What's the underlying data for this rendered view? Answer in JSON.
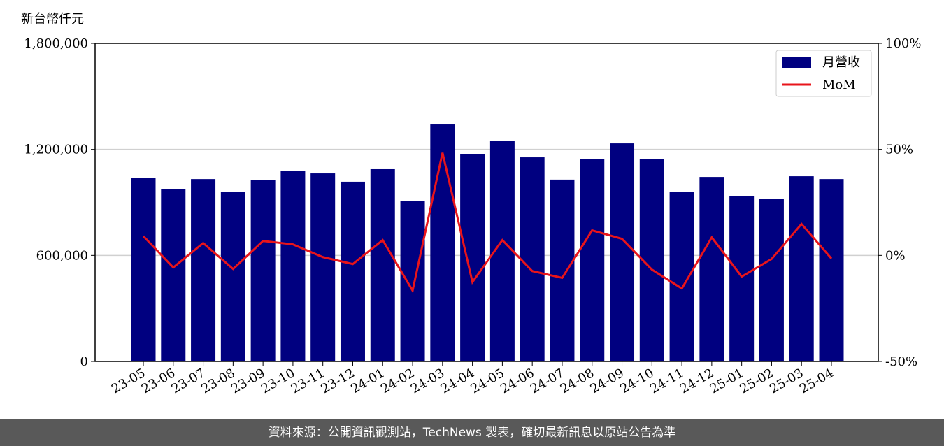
{
  "chart_data": {
    "type": "bar-line",
    "y_label": "新台幣仟元",
    "categories": [
      "23-05",
      "23-06",
      "23-07",
      "23-08",
      "23-09",
      "23-10",
      "23-11",
      "23-12",
      "24-01",
      "24-02",
      "24-03",
      "24-04",
      "24-05",
      "24-06",
      "24-07",
      "24-08",
      "24-09",
      "24-10",
      "24-11",
      "24-12",
      "25-01",
      "25-02",
      "25-03",
      "25-04"
    ],
    "series": [
      {
        "name": "月營收",
        "color": "#000080",
        "type": "bar",
        "values": [
          1040000,
          977000,
          1032000,
          961000,
          1025000,
          1080000,
          1064000,
          1017000,
          1088000,
          906000,
          1341000,
          1171000,
          1250000,
          1155000,
          1029000,
          1147000,
          1234000,
          1147000,
          961000,
          1044000,
          934000,
          918000,
          1048000,
          1032000
        ]
      },
      {
        "name": "MoM",
        "color": "#e8141b",
        "type": "line",
        "axis": "y2",
        "values": [
          9.1,
          -5.7,
          5.8,
          -6.4,
          6.8,
          5.2,
          -0.8,
          -4.1,
          7.2,
          -16.6,
          48.4,
          -12.6,
          7.2,
          -7.4,
          -10.6,
          11.8,
          7.8,
          -6.7,
          -15.6,
          8.5,
          -10,
          -1.7,
          14.8,
          -1.5
        ]
      }
    ],
    "ylim": [
      0,
      1800000
    ],
    "yticks": [
      0,
      {
        "value": 600000,
        "label": "600,000"
      },
      {
        "value": 1200000,
        "label": "1,200,000"
      },
      {
        "value": 1800000,
        "label": "1,800,000"
      }
    ],
    "y2lim": [
      -50,
      100
    ],
    "y2ticks": [
      {
        "value": -50,
        "label": "-50%"
      },
      {
        "value": 0,
        "label": "0%"
      },
      {
        "value": 50,
        "label": "50%"
      },
      {
        "value": 100,
        "label": "100%"
      }
    ],
    "grid": true,
    "legend": "upper right",
    "footer": "資料來源：公開資訊觀測站，TechNews 製表，確切最新訊息以原站公告為準"
  }
}
